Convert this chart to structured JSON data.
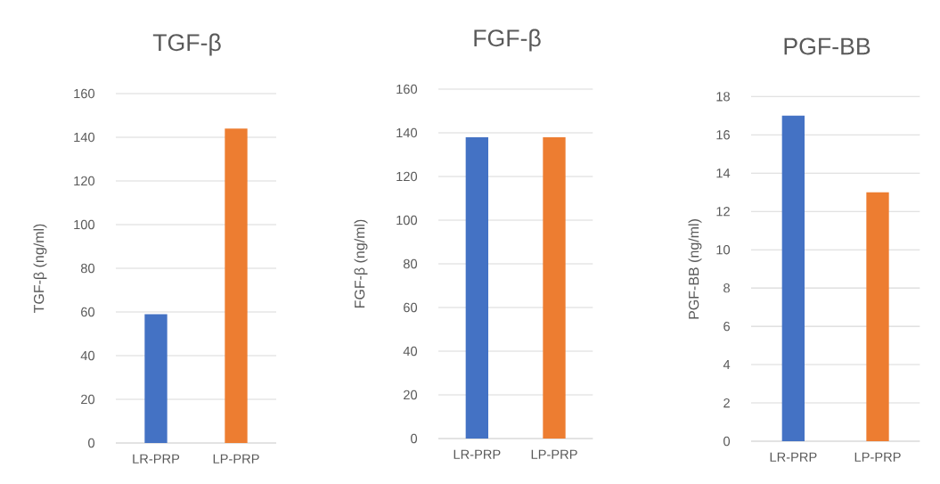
{
  "chart_data": [
    {
      "type": "bar",
      "title": "TGF-β",
      "ylabel": "TGF-β (ng/ml)",
      "categories": [
        "LR-PRP",
        "LP-PRP"
      ],
      "values": [
        59,
        144
      ],
      "colors": [
        "#4472c4",
        "#ed7d31"
      ],
      "ylim": [
        0,
        160
      ],
      "yticks": [
        0,
        20,
        40,
        60,
        80,
        100,
        120,
        140,
        160
      ],
      "grid": "y"
    },
    {
      "type": "bar",
      "title": "FGF-β",
      "ylabel": "FGF-β (ng/ml)",
      "categories": [
        "LR-PRP",
        "LP-PRP"
      ],
      "values": [
        138,
        138
      ],
      "colors": [
        "#4472c4",
        "#ed7d31"
      ],
      "ylim": [
        0,
        160
      ],
      "yticks": [
        0,
        20,
        40,
        60,
        80,
        100,
        120,
        140,
        160
      ],
      "grid": "y"
    },
    {
      "type": "bar",
      "title": "PGF-BB",
      "ylabel": "PGF-BB (ng/ml)",
      "categories": [
        "LR-PRP",
        "LP-PRP"
      ],
      "values": [
        17,
        13
      ],
      "colors": [
        "#4472c4",
        "#ed7d31"
      ],
      "ylim": [
        0,
        18
      ],
      "yticks": [
        0,
        2,
        4,
        6,
        8,
        10,
        12,
        14,
        16,
        18
      ],
      "grid": "y"
    }
  ]
}
